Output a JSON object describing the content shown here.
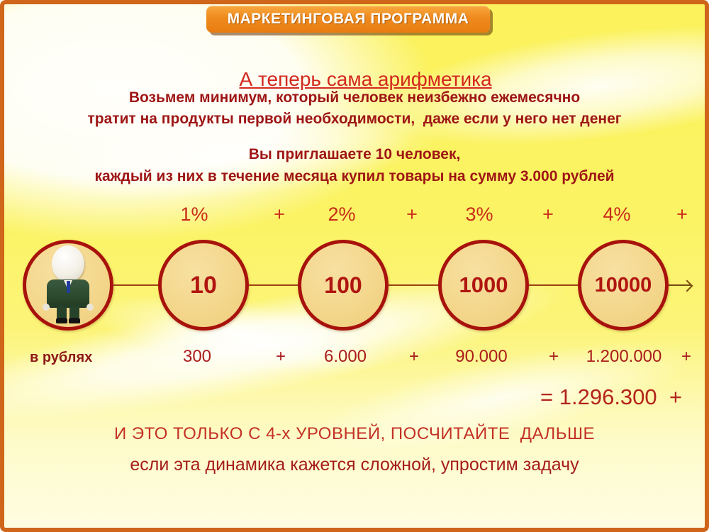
{
  "banner": {
    "label": "МАРКЕТИНГОВАЯ ПРОГРАММА"
  },
  "heading": "А теперь сама арифметика",
  "intro": {
    "line1": "Возьмем минимум, который человек неизбежно ежемесячно",
    "line2": "тратит на продукты первой необходимости,  даже если у него нет денег"
  },
  "invite": {
    "line1": "Вы приглашаете 10 человек,",
    "line2": "каждый из них в течение месяца купил товары на сумму 3.000 рублей"
  },
  "percent_row": [
    "1%",
    "+",
    "2%",
    "+",
    "3%",
    "+",
    "4%",
    "+"
  ],
  "levels": {
    "person_icon": "businessman-figure",
    "values": [
      "10",
      "100",
      "1000",
      "10000"
    ]
  },
  "rubles": {
    "label": "в рублях",
    "row": [
      "300",
      "+",
      "6.000",
      "+",
      "90.000",
      "+",
      "1.200.000",
      "+"
    ],
    "total": "= 1.296.300  +"
  },
  "footer": {
    "line1": "И ЭТО ТОЛЬКО С 4-х УРОВНЕЙ, ПОСЧИТАЙТЕ  ДАЛЬШЕ",
    "line2": "если эта динамика кажется сложной, упростим задачу"
  },
  "colors": {
    "border_orange": "#cf661a",
    "banner_orange": "#ef8a1e",
    "heading_red": "#d3281e",
    "body_text_red": "#9e1515",
    "circle_fill": "#f4d78c",
    "circle_border": "#a8120c",
    "number_red": "#b01510",
    "background_yellow": "#fbf363"
  }
}
